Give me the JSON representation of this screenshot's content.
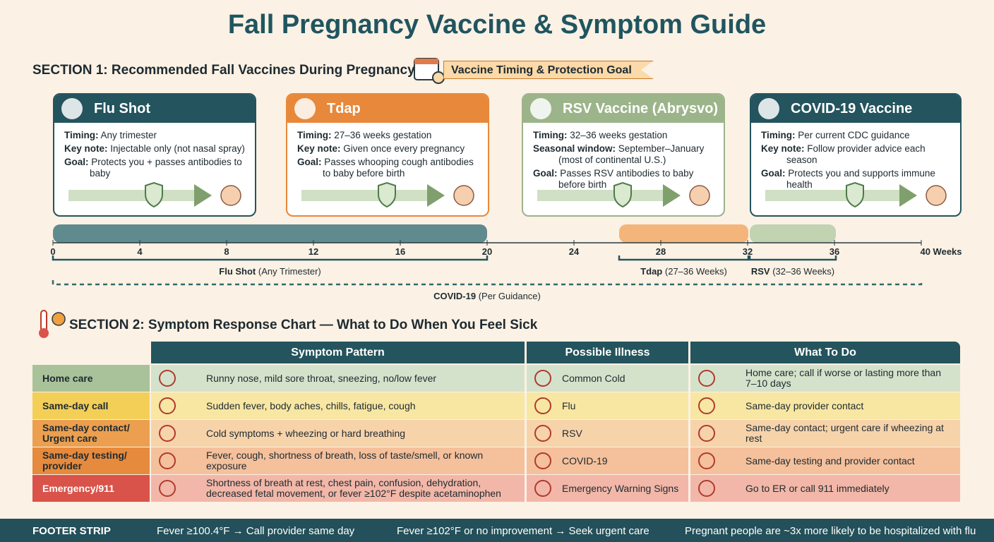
{
  "header": {
    "title": "Fall Pregnancy Vaccine & Symptom Guide"
  },
  "section1": {
    "title": "SECTION 1: Recommended Fall Vaccines During Pregnancy",
    "badge": "Vaccine Timing & Protection Goal",
    "cards": [
      {
        "name": "Flu Shot",
        "rows": [
          {
            "label": "Timing:",
            "text": "Any trimester"
          },
          {
            "label": "Key note:",
            "text": "Injectable only (not nasal spray)"
          },
          {
            "label": "Goal:",
            "text": "Protects you + passes antibodies to baby"
          }
        ]
      },
      {
        "name": "Tdap",
        "rows": [
          {
            "label": "Timing:",
            "text": "27–36 weeks gestation"
          },
          {
            "label": "Key note:",
            "text": "Given once every pregnancy"
          },
          {
            "label": "Goal:",
            "text": "Passes whooping cough antibodies to baby before birth"
          }
        ]
      },
      {
        "name": "RSV Vaccine (Abrysvo)",
        "rows": [
          {
            "label": "Timing:",
            "text": "32–36 weeks gestation"
          },
          {
            "label": "Seasonal window:",
            "text": "September–January (most of continental U.S.)"
          },
          {
            "label": "Goal:",
            "text": "Passes RSV antibodies to baby before birth"
          }
        ]
      },
      {
        "name": "COVID-19 Vaccine",
        "rows": [
          {
            "label": "Timing:",
            "text": "Per current CDC guidance"
          },
          {
            "label": "Key note:",
            "text": "Follow provider advice each season"
          },
          {
            "label": "Goal:",
            "text": "Protects you and supports immune health"
          }
        ]
      }
    ]
  },
  "timeline": {
    "ticks": [
      0,
      4,
      8,
      12,
      16,
      20,
      24,
      28,
      32,
      36,
      {
        "value": 40,
        "label": "40 Weeks"
      }
    ],
    "bars": [
      {
        "name": "Flu Shot",
        "note": "(Any Trimester)"
      },
      {
        "name": "Tdap",
        "note": "(27–36 Weeks)"
      },
      {
        "name": "RSV",
        "note": "(32–36 Weeks)"
      },
      {
        "name": "COVID-19",
        "note": "(Per Guidance)"
      }
    ]
  },
  "section2": {
    "title": "SECTION 2: Symptom Response Chart — What to Do When You Feel Sick",
    "columns": [
      "Symptom Pattern",
      "Possible Illness",
      "What To Do"
    ],
    "rows": [
      [
        "Home care",
        "Runny nose, mild sore throat, sneezing, no/low fever",
        "Common Cold",
        "Home care; call if worse or lasting more than 7–10 days"
      ],
      [
        "Same-day call",
        "Sudden fever, body aches, chills, fatigue, cough",
        "Flu",
        "Same-day provider contact"
      ],
      [
        "Same-day contact/ Urgent care",
        "Cold symptoms + wheezing or hard breathing",
        "RSV",
        "Same-day contact; urgent care if wheezing at rest"
      ],
      [
        "Same-day testing/ provider",
        "Fever, cough, shortness of breath, loss of taste/smell, or known exposure",
        "COVID-19",
        "Same-day testing and provider contact"
      ],
      [
        "Emergency/911",
        "Shortness of breath at rest, chest pain, confusion, dehydration, decreased fetal movement, or fever ≥102°F despite acetaminophen",
        "Emergency Warning Signs",
        "Go to ER or call 911 immediately"
      ]
    ]
  },
  "footer": {
    "label": "FOOTER STRIP",
    "items": [
      "Fever ≥100.4°F → Call provider same day",
      "Fever ≥102°F or no improvement → Seek urgent care",
      "Pregnant people are ~3x more likely to be hospitalized with flu"
    ]
  }
}
